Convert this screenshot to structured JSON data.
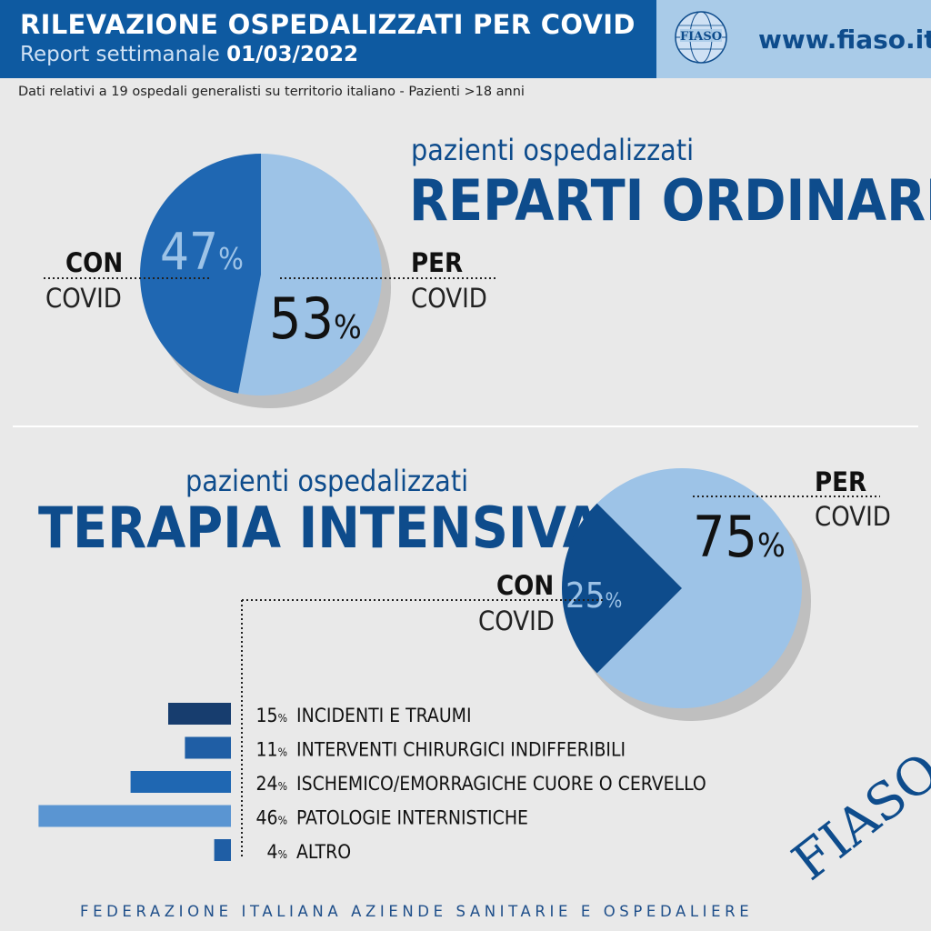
{
  "header": {
    "title": "RILEVAZIONE OSPEDALIZZATI PER COVID",
    "report_label": "Report settimanale",
    "report_date": "01/03/2022",
    "site": "www.fiaso.it",
    "subtitle": "Dati relativi a 19 ospedali generalisti su territorio italiano - Pazienti >18 anni"
  },
  "colors": {
    "dark_blue": "#0e4c8c",
    "mid_blue": "#1f67b2",
    "light_blue": "#9dc3e7",
    "navy": "#173d6e"
  },
  "chart_data": [
    {
      "type": "pie",
      "title_small": "pazienti ospedalizzati",
      "title": "REPARTI ORDINARI",
      "slices": [
        {
          "label_bold": "CON",
          "label_light": "COVID",
          "value": 47,
          "display": "47%"
        },
        {
          "label_bold": "PER",
          "label_light": "COVID",
          "value": 53,
          "display": "53%"
        }
      ]
    },
    {
      "type": "pie",
      "title_small": "pazienti ospedalizzati",
      "title": "TERAPIA INTENSIVA",
      "slices": [
        {
          "label_bold": "CON",
          "label_light": "COVID",
          "value": 25,
          "display": "25%"
        },
        {
          "label_bold": "PER",
          "label_light": "COVID",
          "value": 75,
          "display": "75%"
        }
      ]
    },
    {
      "type": "bar",
      "orientation": "horizontal",
      "categories": [
        "INCIDENTI E TRAUMI",
        "INTERVENTI CHIRURGICI INDIFFERIBILI",
        "ISCHEMICO/EMORRAGICHE CUORE O CERVELLO",
        "PATOLOGIE INTERNISTICHE",
        "ALTRO"
      ],
      "values": [
        15,
        11,
        24,
        46,
        4
      ],
      "colors": [
        "#173d6e",
        "#1f5ea5",
        "#1f67b2",
        "#5a95d2",
        "#1f5ea5"
      ]
    }
  ],
  "footer": "FEDERAZIONE ITALIANA AZIENDE SANITARIE E OSPEDALIERE",
  "brand": "FIASO",
  "logo_text": "FIASO"
}
